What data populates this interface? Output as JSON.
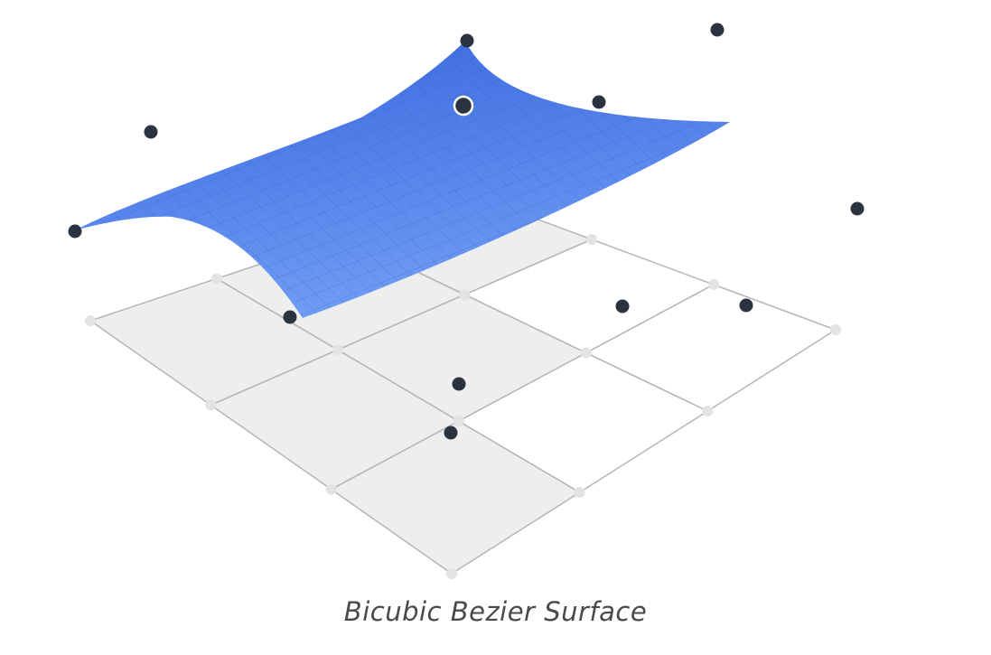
{
  "caption": "Bicubic Bezier Surface",
  "colors": {
    "surface_light": "#6f9cf2",
    "surface_dark": "#3a67dc",
    "control_point": "#2b3340",
    "grid_line": "#b5b5b5",
    "grid_fill": "#eeeeee"
  },
  "grid": {
    "rows": 3,
    "cols": 3
  },
  "selected_control_point": true
}
